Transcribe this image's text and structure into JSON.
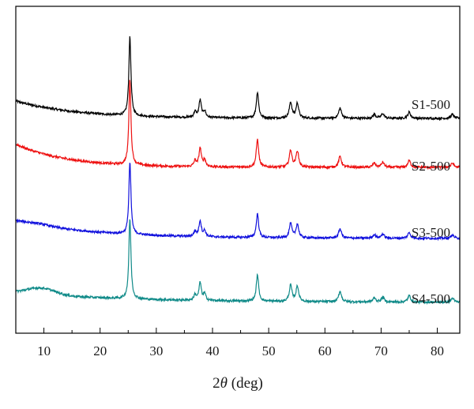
{
  "chart_data": {
    "type": "line",
    "title": "",
    "xlabel_prefix": "2",
    "xlabel_symbol": "θ",
    "xlabel_suffix": " (deg)",
    "ylabel": "",
    "xlim": [
      5,
      84
    ],
    "x_ticks": [
      10,
      20,
      30,
      40,
      50,
      60,
      70,
      80
    ],
    "y_ticks": [],
    "legend": "none",
    "grid": false,
    "peaks": [
      {
        "x": 25.3,
        "rel": 1.0,
        "w": 0.22
      },
      {
        "x": 36.9,
        "rel": 0.07,
        "w": 0.25
      },
      {
        "x": 37.8,
        "rel": 0.22,
        "w": 0.25
      },
      {
        "x": 38.6,
        "rel": 0.08,
        "w": 0.25
      },
      {
        "x": 48.0,
        "rel": 0.33,
        "w": 0.25
      },
      {
        "x": 53.9,
        "rel": 0.2,
        "w": 0.28
      },
      {
        "x": 55.1,
        "rel": 0.19,
        "w": 0.28
      },
      {
        "x": 62.7,
        "rel": 0.13,
        "w": 0.3
      },
      {
        "x": 68.8,
        "rel": 0.05,
        "w": 0.3
      },
      {
        "x": 70.3,
        "rel": 0.06,
        "w": 0.3
      },
      {
        "x": 75.0,
        "rel": 0.08,
        "w": 0.3
      },
      {
        "x": 82.7,
        "rel": 0.05,
        "w": 0.3
      }
    ],
    "series": [
      {
        "name": "S1-500",
        "color": "#000000",
        "peak_height": 1.0,
        "background": {
          "start": 0.22,
          "decay": 0.09
        },
        "hump": {
          "center": 9,
          "height": 0.0,
          "width": 3
        }
      },
      {
        "name": "S2-500",
        "color": "#ee1111",
        "peak_height": 1.02,
        "background": {
          "start": 0.28,
          "decay": 0.11
        },
        "hump": {
          "center": 9,
          "height": 0.0,
          "width": 3
        }
      },
      {
        "name": "S3-500",
        "color": "#1010dd",
        "peak_height": 0.93,
        "background": {
          "start": 0.23,
          "decay": 0.07
        },
        "hump": {
          "center": 9,
          "height": 0.02,
          "width": 3
        }
      },
      {
        "name": "S4-500",
        "color": "#0f8a88",
        "peak_height": 0.98,
        "background": {
          "start": 0.12,
          "decay": 0.05
        },
        "hump": {
          "center": 9.5,
          "height": 0.08,
          "width": 3.5
        }
      }
    ]
  }
}
